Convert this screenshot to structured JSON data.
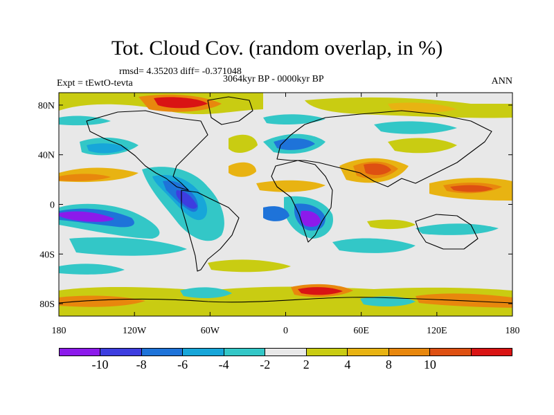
{
  "title": "Tot. Cloud Cov. (random overlap, in %)",
  "stats": "rmsd= 4.35203 diff= -0.371048",
  "period": "3064kyr BP - 0000kyr BP",
  "expt": "Expt = tEwtO-tevta",
  "season": "ANN",
  "map": {
    "lon_ticks": [
      "180",
      "120W",
      "60W",
      "0",
      "60E",
      "120E",
      "180"
    ],
    "lat_ticks": [
      "80N",
      "40N",
      "0",
      "40S",
      "80S"
    ]
  },
  "colorbar": {
    "colors": [
      "#8c1aeb",
      "#3d3de0",
      "#1e73d9",
      "#17a6d9",
      "#33c7c7",
      "#e8e8e8",
      "#c9cc12",
      "#e8b312",
      "#e8870d",
      "#de5012",
      "#d91414"
    ],
    "labels": [
      "-10",
      "-8",
      "-6",
      "-4",
      "-2",
      "2",
      "4",
      "8",
      "10"
    ]
  }
}
